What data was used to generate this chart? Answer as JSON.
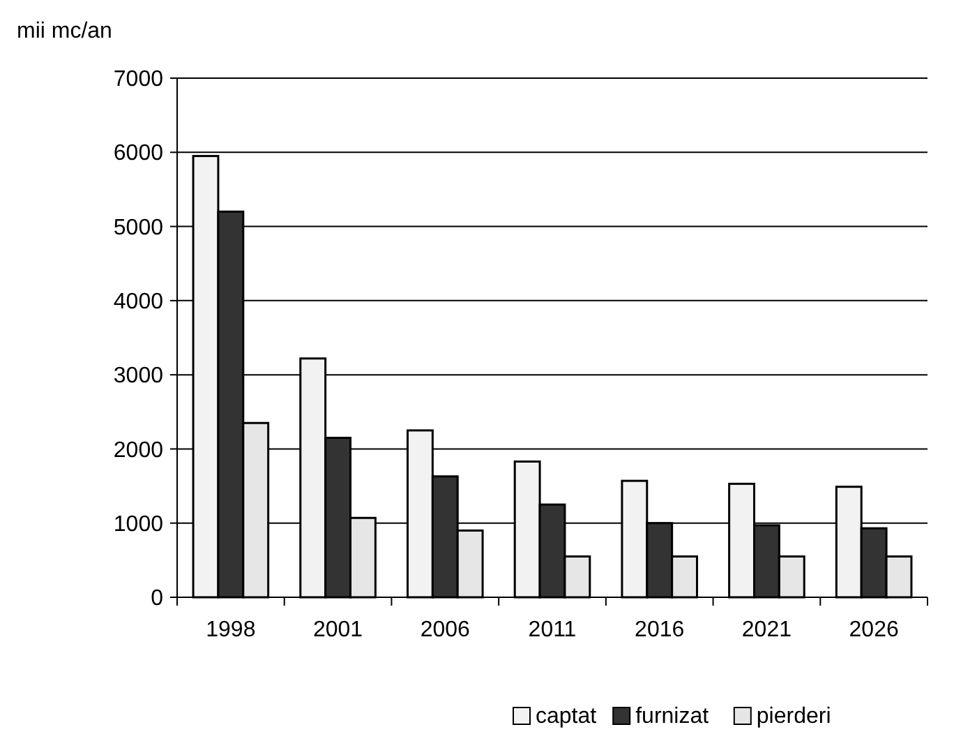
{
  "chart_data": {
    "type": "bar",
    "ylabel": "mii mc/an",
    "categories": [
      "1998",
      "2001",
      "2006",
      "2011",
      "2016",
      "2021",
      "2026"
    ],
    "series": [
      {
        "name": "captat",
        "color": "#f2f2f2",
        "values": [
          5950,
          3220,
          2250,
          1830,
          1570,
          1530,
          1490
        ]
      },
      {
        "name": "furnizat",
        "color": "#333333",
        "values": [
          5200,
          2150,
          1630,
          1250,
          1000,
          970,
          930
        ]
      },
      {
        "name": "pierderi",
        "color": "#e6e6e6",
        "values": [
          2350,
          1070,
          900,
          550,
          550,
          550,
          550
        ]
      }
    ],
    "ylim": [
      0,
      7000
    ],
    "yticks": [
      0,
      1000,
      2000,
      3000,
      4000,
      5000,
      6000,
      7000
    ],
    "grid": "y",
    "legend": "bottom"
  }
}
